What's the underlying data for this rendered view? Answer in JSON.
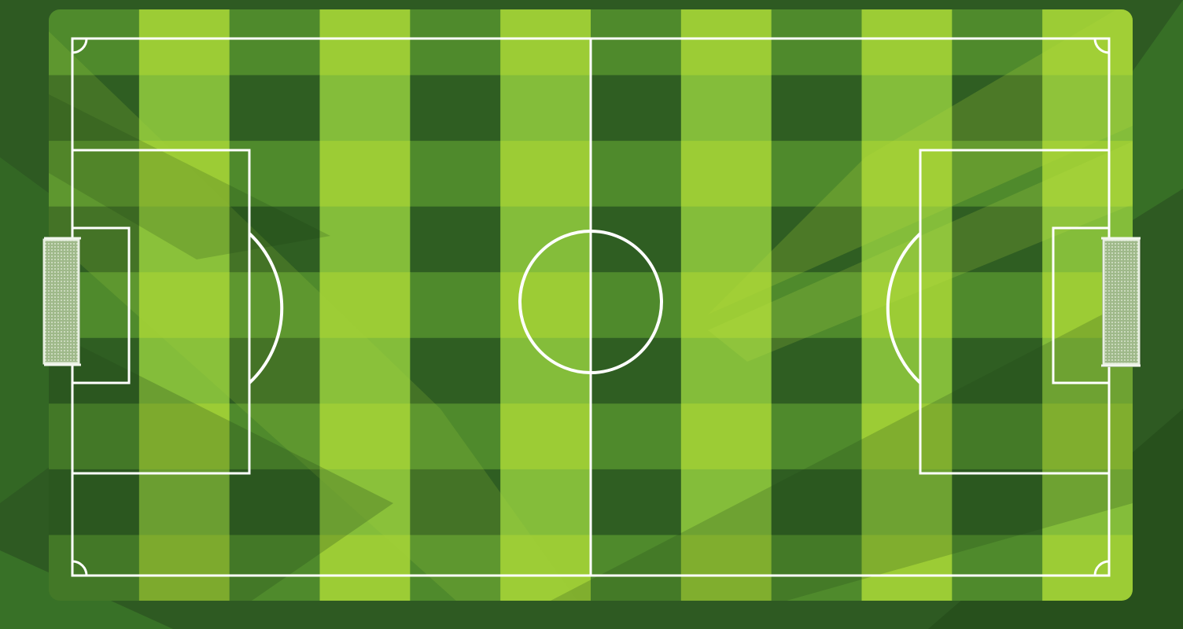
{
  "scene": {
    "description_free": true,
    "colors": {
      "background": "#2e5a22",
      "pitch_dark": "#2f5e22",
      "pitch_mid": "#4f8a2c",
      "pitch_light": "#84bd3a",
      "pitch_bright": "#9ccc35",
      "lines": "#ffffff",
      "net": "#d9e6cf"
    },
    "pitch": {
      "stripe_columns": 12,
      "stripe_rows": 9,
      "has_center_circle": true,
      "has_halfway_line": true,
      "has_penalty_areas": true,
      "has_goal_areas": true,
      "has_penalty_arcs": true,
      "has_corner_arcs": true,
      "goals": [
        "left-goal",
        "right-goal"
      ]
    }
  }
}
